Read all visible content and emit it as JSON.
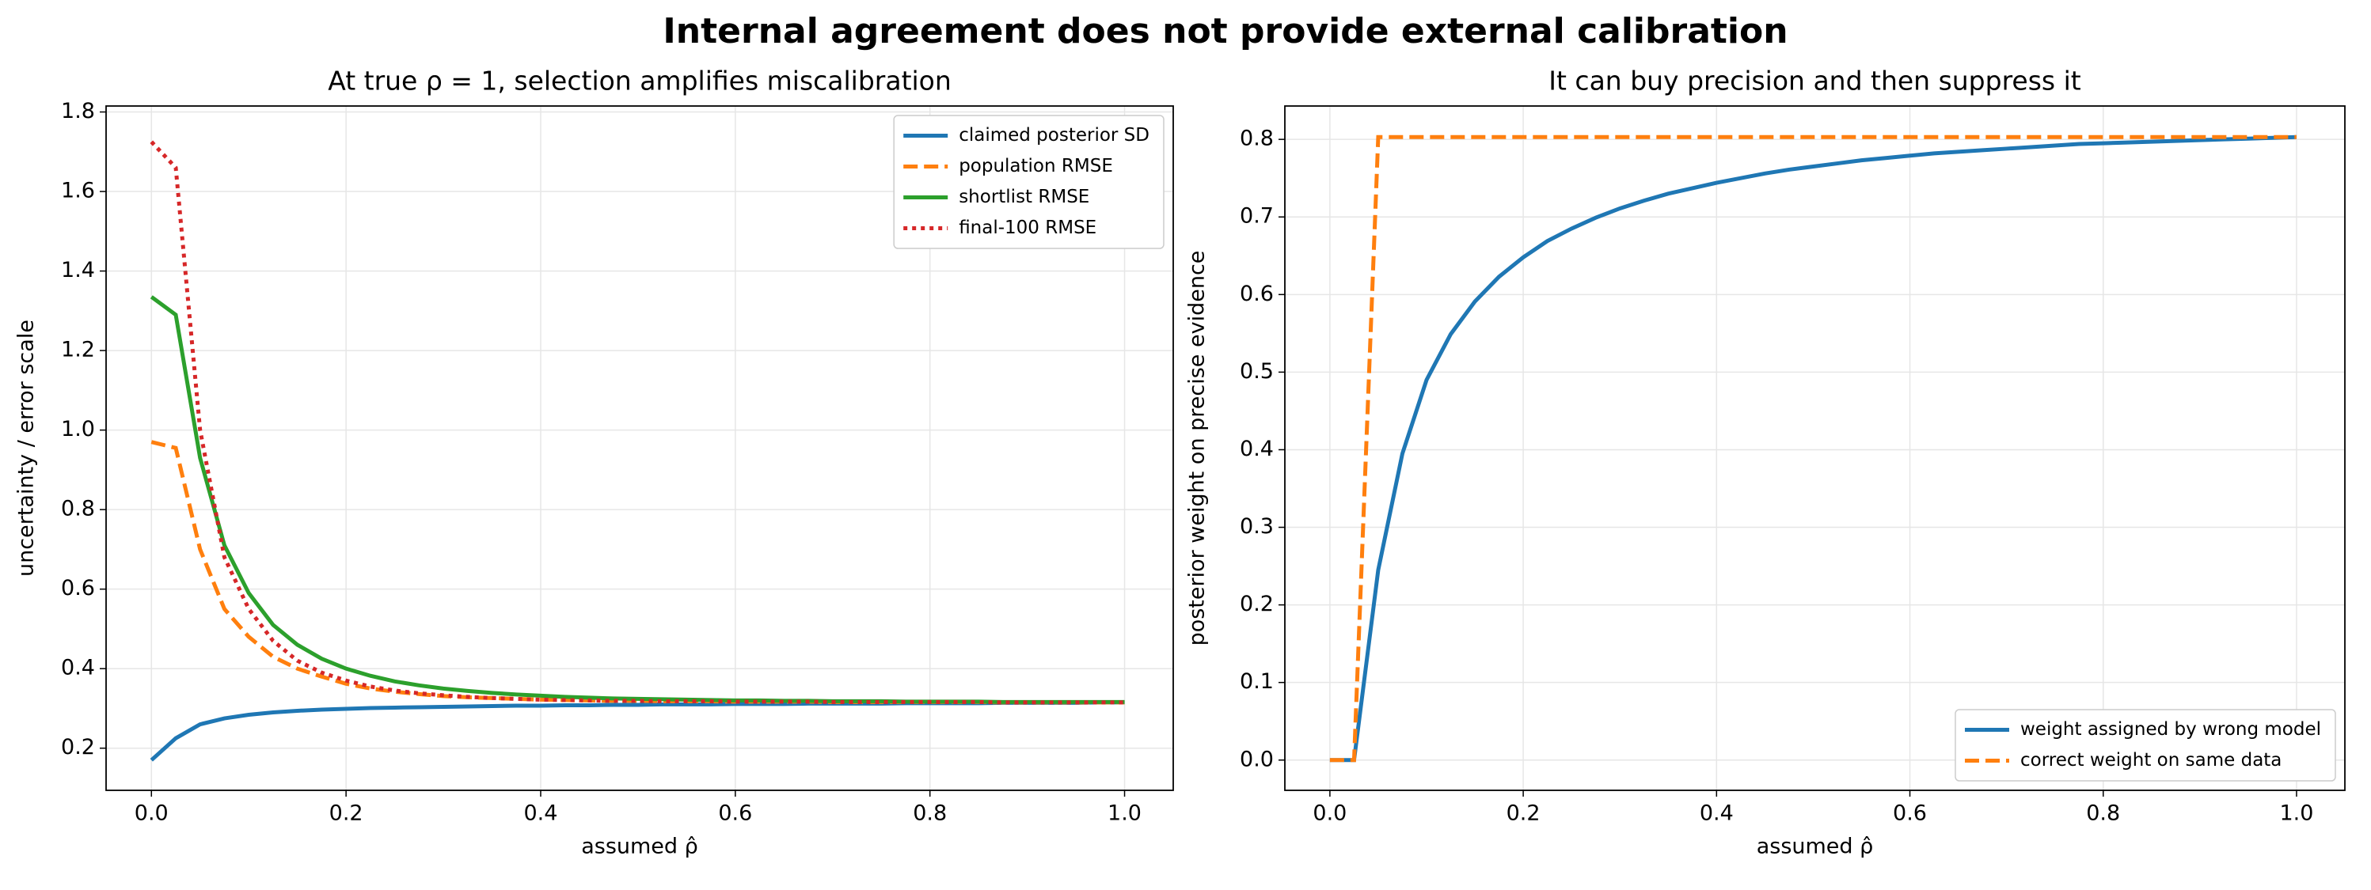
{
  "suptitle": "Internal agreement does not provide external calibration",
  "chart_data": [
    {
      "type": "line",
      "title": "At true ρ = 1, selection amplifies miscalibration",
      "xlabel": "assumed ρ̂",
      "ylabel": "uncertainty / error scale",
      "x": [
        0,
        0.025,
        0.05,
        0.075,
        0.1,
        0.125,
        0.15,
        0.175,
        0.2,
        0.225,
        0.25,
        0.275,
        0.3,
        0.325,
        0.35,
        0.375,
        0.4,
        0.425,
        0.45,
        0.475,
        0.5,
        0.525,
        0.55,
        0.575,
        0.6,
        0.625,
        0.65,
        0.675,
        0.7,
        0.725,
        0.75,
        0.775,
        0.8,
        0.825,
        0.85,
        0.875,
        0.9,
        0.925,
        0.95,
        0.975,
        1.0
      ],
      "series": [
        {
          "name": "claimed posterior SD",
          "color": "#1f77b4",
          "dash": "solid",
          "values": [
            0.17,
            0.225,
            0.26,
            0.275,
            0.284,
            0.29,
            0.294,
            0.297,
            0.299,
            0.301,
            0.302,
            0.303,
            0.304,
            0.305,
            0.306,
            0.307,
            0.307,
            0.308,
            0.308,
            0.309,
            0.309,
            0.31,
            0.31,
            0.31,
            0.311,
            0.311,
            0.311,
            0.312,
            0.312,
            0.312,
            0.312,
            0.313,
            0.313,
            0.313,
            0.313,
            0.314,
            0.314,
            0.314,
            0.314,
            0.315,
            0.315
          ]
        },
        {
          "name": "population RMSE",
          "color": "#ff7f0e",
          "dash": "dashed",
          "values": [
            0.97,
            0.955,
            0.7,
            0.55,
            0.48,
            0.43,
            0.4,
            0.38,
            0.362,
            0.35,
            0.342,
            0.336,
            0.331,
            0.328,
            0.326,
            0.324,
            0.322,
            0.321,
            0.32,
            0.319,
            0.319,
            0.318,
            0.318,
            0.318,
            0.317,
            0.317,
            0.317,
            0.317,
            0.316,
            0.316,
            0.316,
            0.316,
            0.316,
            0.316,
            0.316,
            0.315,
            0.315,
            0.315,
            0.315,
            0.315,
            0.315
          ]
        },
        {
          "name": "shortlist RMSE",
          "color": "#2ca02c",
          "dash": "solid",
          "values": [
            1.335,
            1.29,
            0.93,
            0.71,
            0.59,
            0.51,
            0.46,
            0.425,
            0.4,
            0.382,
            0.368,
            0.358,
            0.35,
            0.344,
            0.339,
            0.335,
            0.332,
            0.329,
            0.327,
            0.325,
            0.324,
            0.323,
            0.322,
            0.321,
            0.32,
            0.32,
            0.319,
            0.319,
            0.318,
            0.318,
            0.318,
            0.317,
            0.317,
            0.317,
            0.317,
            0.316,
            0.316,
            0.316,
            0.316,
            0.316,
            0.316
          ]
        },
        {
          "name": "final-100 RMSE",
          "color": "#d62728",
          "dash": "dotted",
          "values": [
            1.725,
            1.66,
            1.0,
            0.68,
            0.55,
            0.47,
            0.42,
            0.39,
            0.37,
            0.355,
            0.345,
            0.338,
            0.333,
            0.329,
            0.326,
            0.324,
            0.322,
            0.321,
            0.32,
            0.319,
            0.319,
            0.318,
            0.318,
            0.318,
            0.317,
            0.317,
            0.317,
            0.317,
            0.316,
            0.316,
            0.316,
            0.316,
            0.316,
            0.316,
            0.316,
            0.315,
            0.315,
            0.315,
            0.315,
            0.315,
            0.315
          ]
        }
      ],
      "xlim": [
        -0.0466,
        1.05
      ],
      "ylim": [
        0.094,
        1.815
      ],
      "xticks": [
        {
          "value": 0,
          "label": "0.0"
        },
        0.2,
        0.4,
        0.6,
        0.8,
        {
          "value": 1,
          "label": "1.0"
        }
      ],
      "yticks": [
        0.2,
        0.4,
        0.6,
        0.8,
        {
          "value": 1,
          "label": "1.0"
        },
        1.2,
        1.4,
        1.6,
        1.8
      ],
      "grid": true,
      "legend": "upper right"
    },
    {
      "type": "line",
      "title": "It can buy precision and then suppress it",
      "xlabel": "assumed ρ̂",
      "ylabel": "posterior weight on precise evidence",
      "x": [
        0,
        0.025,
        0.05,
        0.075,
        0.1,
        0.125,
        0.15,
        0.175,
        0.2,
        0.225,
        0.25,
        0.275,
        0.3,
        0.325,
        0.35,
        0.375,
        0.4,
        0.425,
        0.45,
        0.475,
        0.5,
        0.525,
        0.55,
        0.575,
        0.6,
        0.625,
        0.65,
        0.675,
        0.7,
        0.725,
        0.75,
        0.775,
        0.8,
        0.825,
        0.85,
        0.875,
        0.9,
        0.925,
        0.95,
        0.975,
        1.0
      ],
      "series": [
        {
          "name": "weight assigned by wrong model",
          "color": "#1f77b4",
          "dash": "solid",
          "values": [
            0,
            0,
            0.245,
            0.395,
            0.49,
            0.549,
            0.591,
            0.623,
            0.648,
            0.669,
            0.685,
            0.699,
            0.711,
            0.721,
            0.73,
            0.737,
            0.744,
            0.75,
            0.756,
            0.761,
            0.765,
            0.769,
            0.773,
            0.776,
            0.779,
            0.782,
            0.784,
            0.786,
            0.788,
            0.79,
            0.792,
            0.794,
            0.795,
            0.796,
            0.797,
            0.798,
            0.799,
            0.8,
            0.801,
            0.802,
            0.803
          ]
        },
        {
          "name": "correct weight on same data",
          "color": "#ff7f0e",
          "dash": "dashed",
          "values": [
            0,
            0,
            0.803,
            0.803,
            0.803,
            0.803,
            0.803,
            0.803,
            0.803,
            0.803,
            0.803,
            0.803,
            0.803,
            0.803,
            0.803,
            0.803,
            0.803,
            0.803,
            0.803,
            0.803,
            0.803,
            0.803,
            0.803,
            0.803,
            0.803,
            0.803,
            0.803,
            0.803,
            0.803,
            0.803,
            0.803,
            0.803,
            0.803,
            0.803,
            0.803,
            0.803,
            0.803,
            0.803,
            0.803,
            0.803,
            0.803
          ]
        }
      ],
      "xlim": [
        -0.0466,
        1.05
      ],
      "ylim": [
        -0.039,
        0.843
      ],
      "xticks": [
        {
          "value": 0,
          "label": "0.0"
        },
        0.2,
        0.4,
        0.6,
        0.8,
        {
          "value": 1,
          "label": "1.0"
        }
      ],
      "yticks": [
        {
          "value": 0,
          "label": "0.0"
        },
        0.1,
        0.2,
        0.3,
        0.4,
        0.5,
        0.6,
        0.7,
        0.8
      ],
      "grid": true,
      "legend": "lower right"
    }
  ]
}
